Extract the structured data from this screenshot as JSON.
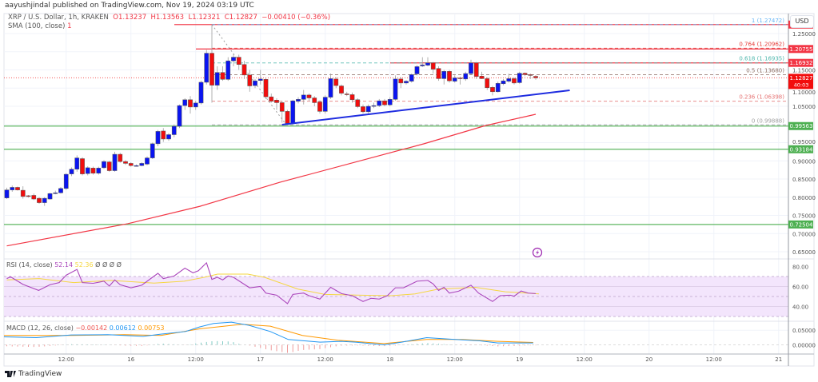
{
  "header": {
    "published": "aayushjindal published on TradingView.com, Nov 19, 2024 03:19 UTC"
  },
  "legend": {
    "symbol": "XRP / U.S. Dollar, 1h, KRAKEN",
    "o": "O1.13237",
    "h": "H1.13563",
    "l": "L1.12321",
    "c": "C1.12827",
    "change": "−0.00410 (−0.36%)",
    "sma_label": "SMA (100, close)",
    "sma_value": "1"
  },
  "currency_button": "USD",
  "logo": "TradingView",
  "rsi_legend": {
    "label": "RSI (14, close)",
    "value": "52.14",
    "ma": "52.36",
    "extra": "Ø Ø Ø Ø"
  },
  "macd_legend": {
    "label": "MACD (12, 26, close)",
    "hist": "−0.00142",
    "macd": "0.00612",
    "signal": "0.00753"
  },
  "colors": {
    "up": "#0a14f0",
    "down": "#f20d0d",
    "sma": "#f23645",
    "rsi": "#ab47bc",
    "rsi_ma": "#f5d742",
    "macd": "#2196f3",
    "signal": "#ff9800",
    "support": "#4caf50",
    "resistance": "#f23645",
    "trendline": "#1f2de0"
  },
  "chart_data": {
    "type": "candlestick",
    "title": "XRP / U.S. Dollar, 1h, KRAKEN",
    "price_range": [
      0.63,
      1.275
    ],
    "price_ticks": [
      "1.25000",
      "1.15000",
      "1.10000",
      "1.05000",
      "0.95000",
      "0.90000",
      "0.85000",
      "0.80000",
      "0.75000",
      "0.70000",
      "0.65000"
    ],
    "time_ticks": [
      "12:00",
      "16",
      "12:00",
      "17",
      "12:00",
      "18",
      "12:00",
      "19",
      "12:00",
      "20",
      "12:00",
      "21"
    ],
    "candles_ohlc": [
      [
        0.798,
        0.826,
        0.795,
        0.82
      ],
      [
        0.82,
        0.832,
        0.815,
        0.827
      ],
      [
        0.827,
        0.829,
        0.818,
        0.82
      ],
      [
        0.819,
        0.83,
        0.796,
        0.802
      ],
      [
        0.804,
        0.806,
        0.799,
        0.802
      ],
      [
        0.805,
        0.81,
        0.792,
        0.795
      ],
      [
        0.797,
        0.8,
        0.782,
        0.785
      ],
      [
        0.785,
        0.8,
        0.776,
        0.797
      ],
      [
        0.795,
        0.812,
        0.793,
        0.81
      ],
      [
        0.812,
        0.818,
        0.808,
        0.812
      ],
      [
        0.812,
        0.828,
        0.81,
        0.824
      ],
      [
        0.824,
        0.866,
        0.82,
        0.863
      ],
      [
        0.864,
        0.882,
        0.858,
        0.877
      ],
      [
        0.877,
        0.915,
        0.87,
        0.908
      ],
      [
        0.906,
        0.91,
        0.86,
        0.864
      ],
      [
        0.865,
        0.885,
        0.86,
        0.881
      ],
      [
        0.88,
        0.884,
        0.862,
        0.866
      ],
      [
        0.866,
        0.884,
        0.862,
        0.88
      ],
      [
        0.881,
        0.902,
        0.878,
        0.898
      ],
      [
        0.897,
        0.9,
        0.87,
        0.873
      ],
      [
        0.873,
        0.925,
        0.87,
        0.918
      ],
      [
        0.918,
        0.922,
        0.895,
        0.898
      ],
      [
        0.898,
        0.902,
        0.889,
        0.893
      ],
      [
        0.893,
        0.896,
        0.884,
        0.887
      ],
      [
        0.887,
        0.89,
        0.884,
        0.887
      ],
      [
        0.887,
        0.896,
        0.885,
        0.893
      ],
      [
        0.891,
        0.912,
        0.888,
        0.908
      ],
      [
        0.908,
        0.95,
        0.905,
        0.947
      ],
      [
        0.947,
        0.985,
        0.94,
        0.981
      ],
      [
        0.982,
        0.99,
        0.952,
        0.96
      ],
      [
        0.96,
        0.976,
        0.955,
        0.972
      ],
      [
        0.972,
        1.0,
        0.965,
        0.995
      ],
      [
        0.995,
        1.055,
        0.99,
        1.052
      ],
      [
        1.052,
        1.072,
        1.04,
        1.068
      ],
      [
        1.068,
        1.078,
        1.03,
        1.048
      ],
      [
        1.048,
        1.065,
        1.04,
        1.059
      ],
      [
        1.059,
        1.12,
        1.055,
        1.116
      ],
      [
        1.116,
        1.205,
        1.11,
        1.196
      ],
      [
        1.196,
        1.2747,
        1.06,
        1.108
      ],
      [
        1.108,
        1.16,
        1.095,
        1.143
      ],
      [
        1.143,
        1.16,
        1.12,
        1.124
      ],
      [
        1.124,
        1.185,
        1.12,
        1.175
      ],
      [
        1.175,
        1.195,
        1.16,
        1.185
      ],
      [
        1.185,
        1.192,
        1.15,
        1.165
      ],
      [
        1.165,
        1.175,
        1.125,
        1.136
      ],
      [
        1.136,
        1.15,
        1.09,
        1.106
      ],
      [
        1.107,
        1.125,
        1.1,
        1.12
      ],
      [
        1.121,
        1.15,
        1.11,
        1.125
      ],
      [
        1.124,
        1.128,
        1.07,
        1.076
      ],
      [
        1.076,
        1.085,
        1.06,
        1.064
      ],
      [
        1.067,
        1.072,
        1.04,
        1.06
      ],
      [
        1.06,
        1.065,
        1.005,
        1.036
      ],
      [
        1.036,
        1.04,
        0.9989,
        1.003
      ],
      [
        1.003,
        1.068,
        1.0,
        1.065
      ],
      [
        1.064,
        1.075,
        1.058,
        1.069
      ],
      [
        1.069,
        1.095,
        1.055,
        1.081
      ],
      [
        1.081,
        1.085,
        1.065,
        1.073
      ],
      [
        1.073,
        1.078,
        1.05,
        1.06
      ],
      [
        1.062,
        1.066,
        1.03,
        1.036
      ],
      [
        1.036,
        1.08,
        1.03,
        1.075
      ],
      [
        1.075,
        1.14,
        1.07,
        1.126
      ],
      [
        1.125,
        1.13,
        1.1,
        1.107
      ],
      [
        1.106,
        1.11,
        1.08,
        1.086
      ],
      [
        1.084,
        1.09,
        1.078,
        1.083
      ],
      [
        1.082,
        1.088,
        1.06,
        1.068
      ],
      [
        1.068,
        1.072,
        1.045,
        1.049
      ],
      [
        1.049,
        1.055,
        1.03,
        1.035
      ],
      [
        1.035,
        1.055,
        1.03,
        1.05
      ],
      [
        1.05,
        1.06,
        1.045,
        1.052
      ],
      [
        1.052,
        1.07,
        1.048,
        1.065
      ],
      [
        1.065,
        1.07,
        1.05,
        1.054
      ],
      [
        1.054,
        1.075,
        1.05,
        1.069
      ],
      [
        1.069,
        1.135,
        1.065,
        1.125
      ],
      [
        1.125,
        1.13,
        1.1,
        1.114
      ],
      [
        1.114,
        1.122,
        1.11,
        1.119
      ],
      [
        1.119,
        1.14,
        1.115,
        1.137
      ],
      [
        1.139,
        1.163,
        1.135,
        1.159
      ],
      [
        1.161,
        1.185,
        1.158,
        1.164
      ],
      [
        1.163,
        1.185,
        1.16,
        1.169
      ],
      [
        1.169,
        1.172,
        1.14,
        1.152
      ],
      [
        1.154,
        1.16,
        1.12,
        1.126
      ],
      [
        1.126,
        1.15,
        1.11,
        1.146
      ],
      [
        1.146,
        1.15,
        1.115,
        1.12
      ],
      [
        1.119,
        1.135,
        1.115,
        1.128
      ],
      [
        1.128,
        1.132,
        1.11,
        1.126
      ],
      [
        1.125,
        1.145,
        1.12,
        1.14
      ],
      [
        1.14,
        1.178,
        1.138,
        1.169
      ],
      [
        1.169,
        1.172,
        1.125,
        1.132
      ],
      [
        1.133,
        1.145,
        1.125,
        1.126
      ],
      [
        1.126,
        1.13,
        1.095,
        1.101
      ],
      [
        1.102,
        1.106,
        1.08,
        1.09
      ],
      [
        1.09,
        1.118,
        1.088,
        1.113
      ],
      [
        1.112,
        1.125,
        1.108,
        1.12
      ],
      [
        1.119,
        1.14,
        1.115,
        1.126
      ],
      [
        1.126,
        1.13,
        1.11,
        1.114
      ],
      [
        1.115,
        1.145,
        1.112,
        1.141
      ],
      [
        1.141,
        1.143,
        1.133,
        1.137
      ],
      [
        1.137,
        1.14,
        1.125,
        1.135
      ],
      [
        1.13237,
        1.13563,
        1.12321,
        1.12827
      ]
    ],
    "sma100": [
      [
        0,
        0.666
      ],
      [
        22.4,
        0.727
      ],
      [
        35.8,
        0.775
      ],
      [
        50.6,
        0.841
      ],
      [
        77.3,
        0.947
      ],
      [
        88.7,
        0.997
      ],
      [
        98,
        1.028
      ]
    ],
    "horizontal_levels": [
      {
        "price": 1.2747,
        "kind": "resistance",
        "label": ""
      },
      {
        "price": 1.20755,
        "kind": "resistance",
        "label": "1.20755"
      },
      {
        "price": 1.16932,
        "kind": "resistance",
        "label": "1.16932"
      },
      {
        "price": 0.99563,
        "kind": "support",
        "label": "0.99563"
      },
      {
        "price": 0.93184,
        "kind": "support",
        "label": "0.93184"
      },
      {
        "price": 0.72504,
        "kind": "support",
        "label": "0.72504"
      }
    ],
    "last_price": {
      "price": 1.12827,
      "label": "1.12827",
      "countdown": "40:03"
    },
    "fibonacci": [
      {
        "ratio": 1,
        "price": 1.27472,
        "label": "1 (1.27472)",
        "color": "#64b5f6"
      },
      {
        "ratio": 0.764,
        "price": 1.20962,
        "label": "0.764 (1.20962)",
        "color": "#e53935"
      },
      {
        "ratio": 0.618,
        "price": 1.16935,
        "label": "0.618 (1.16935)",
        "color": "#4db6ac"
      },
      {
        "ratio": 0.5,
        "price": 1.1368,
        "label": "0.5 (1.13680)",
        "color": "#8d6e63"
      },
      {
        "ratio": 0.236,
        "price": 1.06398,
        "label": "0.236 (1.06398)",
        "color": "#e57373"
      },
      {
        "ratio": 0,
        "price": 0.99888,
        "label": "0 (0.99888)",
        "color": "#9e9e9e"
      }
    ],
    "trendline": [
      [
        51,
        0.9995
      ],
      [
        104.3,
        1.094
      ]
    ],
    "rsi": {
      "ticks": [
        "80.00",
        "60.00",
        "40.00"
      ],
      "bands": [
        30,
        70
      ],
      "values": [
        [
          0,
          67.9
        ],
        [
          0.7,
          69.7
        ],
        [
          3,
          62.1
        ],
        [
          5.9,
          56.1
        ],
        [
          8,
          61.8
        ],
        [
          9.7,
          63.9
        ],
        [
          11,
          71.3
        ],
        [
          13,
          77.1
        ],
        [
          14,
          63.9
        ],
        [
          16,
          63.2
        ],
        [
          18,
          65.3
        ],
        [
          19,
          60.5
        ],
        [
          20,
          66.6
        ],
        [
          21,
          61.8
        ],
        [
          23,
          58.7
        ],
        [
          25,
          61.3
        ],
        [
          28,
          73.2
        ],
        [
          29,
          67.9
        ],
        [
          31,
          70.5
        ],
        [
          33,
          78.4
        ],
        [
          34.5,
          73.7
        ],
        [
          35.5,
          75.8
        ],
        [
          37,
          83.7
        ],
        [
          38,
          67.1
        ],
        [
          39,
          69.2
        ],
        [
          40,
          66.6
        ],
        [
          41,
          70.5
        ],
        [
          42,
          69.2
        ],
        [
          45,
          58.7
        ],
        [
          47,
          60
        ],
        [
          48,
          53.4
        ],
        [
          50,
          51.3
        ],
        [
          52,
          42.9
        ],
        [
          53,
          52.1
        ],
        [
          55,
          53.4
        ],
        [
          56,
          50.8
        ],
        [
          58,
          47.4
        ],
        [
          60,
          59.2
        ],
        [
          62,
          52.9
        ],
        [
          64,
          50.8
        ],
        [
          66,
          45
        ],
        [
          67.5,
          48.2
        ],
        [
          69,
          47.4
        ],
        [
          70.5,
          50.8
        ],
        [
          72,
          58.7
        ],
        [
          73.5,
          58.7
        ],
        [
          76,
          65.3
        ],
        [
          78,
          66.1
        ],
        [
          79,
          62.6
        ],
        [
          80,
          56.1
        ],
        [
          81,
          59.2
        ],
        [
          82,
          53.4
        ],
        [
          83.7,
          55.3
        ],
        [
          86,
          61.3
        ],
        [
          87.4,
          53.4
        ],
        [
          90,
          45
        ],
        [
          91.4,
          50.8
        ],
        [
          93.3,
          51.3
        ],
        [
          94,
          50.3
        ],
        [
          95.3,
          55.5
        ],
        [
          96.6,
          53.4
        ],
        [
          98,
          52.9
        ]
      ],
      "ma": [
        [
          0,
          66.6
        ],
        [
          9.7,
          67.9
        ],
        [
          20,
          63.9
        ],
        [
          31,
          66.1
        ],
        [
          44,
          63.4
        ],
        [
          53,
          65.3
        ],
        [
          59,
          69.2
        ],
        [
          63,
          72.4
        ],
        [
          72,
          72.4
        ],
        [
          77,
          69.2
        ],
        [
          87,
          57.4
        ],
        [
          95,
          52.1
        ],
        [
          106,
          51.3
        ],
        [
          115,
          50.8
        ],
        [
          122,
          52.6
        ],
        [
          129,
          57.4
        ],
        [
          140,
          59.2
        ],
        [
          149,
          54.7
        ],
        [
          159,
          52.6
        ]
      ]
    },
    "macd": {
      "ticks": [
        "0.05000",
        "0.00000"
      ],
      "macd": [
        [
          0,
          0.0273
        ],
        [
          13.5,
          0.0246
        ],
        [
          28,
          0.0339
        ],
        [
          43.2,
          0.0347
        ],
        [
          58,
          0.0292
        ],
        [
          65.4,
          0.0366
        ],
        [
          75.7,
          0.0456
        ],
        [
          81.5,
          0.0612
        ],
        [
          87.4,
          0.073
        ],
        [
          94.8,
          0.0776
        ],
        [
          102.2,
          0.0667
        ],
        [
          111,
          0.0456
        ],
        [
          118.5,
          0.0183
        ],
        [
          131.8,
          0.0093
        ],
        [
          140.6,
          0.012
        ],
        [
          146.5,
          0.0093
        ],
        [
          158.4,
          0
        ],
        [
          165.8,
          0.0093
        ],
        [
          176.2,
          0.0246
        ],
        [
          188,
          0.0183
        ],
        [
          198.4,
          0.0137
        ],
        [
          205.8,
          0.0066
        ],
        [
          220.6,
          0.0066
        ]
      ],
      "signal": [
        [
          0,
          0.032
        ],
        [
          28,
          0.032
        ],
        [
          50.2,
          0.0347
        ],
        [
          65.4,
          0.032
        ],
        [
          81.5,
          0.0546
        ],
        [
          99.3,
          0.0703
        ],
        [
          111,
          0.0639
        ],
        [
          124.4,
          0.032
        ],
        [
          139.2,
          0.0156
        ],
        [
          158.4,
          0.0046
        ],
        [
          176.2,
          0.0183
        ],
        [
          191,
          0.0183
        ],
        [
          205.8,
          0.012
        ],
        [
          220.6,
          0.0082
        ]
      ]
    }
  }
}
